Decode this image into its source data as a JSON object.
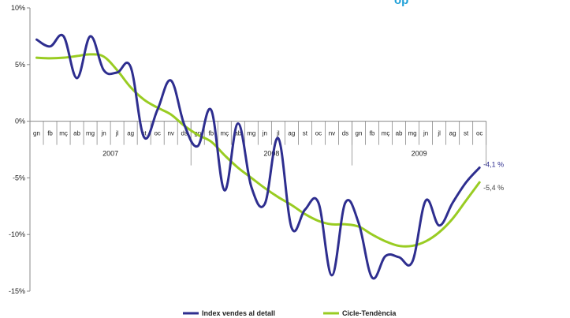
{
  "chart_data": {
    "type": "line",
    "title_fragment": "op",
    "ylim": [
      -15,
      10
    ],
    "y_ticks": [
      {
        "value": 10,
        "label": "10%"
      },
      {
        "value": 5,
        "label": "5%"
      },
      {
        "value": 0,
        "label": "0%"
      },
      {
        "value": -5,
        "label": "-5%"
      },
      {
        "value": -10,
        "label": "-10%"
      },
      {
        "value": -15,
        "label": "-15%"
      }
    ],
    "months": [
      "gn",
      "fb",
      "mç",
      "ab",
      "mg",
      "jn",
      "jl",
      "ag",
      "st",
      "oc",
      "nv",
      "ds",
      "gn",
      "fb",
      "mç",
      "ab",
      "mg",
      "jn",
      "jl",
      "ag",
      "st",
      "oc",
      "nv",
      "ds",
      "gn",
      "fb",
      "mç",
      "ab",
      "mg",
      "jn",
      "jl",
      "ag",
      "st",
      "oc"
    ],
    "years": [
      {
        "label": "2007",
        "start": 0,
        "end": 11
      },
      {
        "label": "2008",
        "start": 12,
        "end": 23
      },
      {
        "label": "2009",
        "start": 24,
        "end": 33
      }
    ],
    "series": [
      {
        "name": "Index vendes al detall",
        "color": "#2e2e8f",
        "values": [
          7.2,
          6.6,
          7.5,
          3.8,
          7.5,
          4.5,
          4.3,
          4.8,
          -1.4,
          1.0,
          3.6,
          -0.3,
          -2.2,
          1.0,
          -6.1,
          -0.2,
          -5.8,
          -7.3,
          -1.5,
          -9.4,
          -7.8,
          -7.2,
          -13.6,
          -7.2,
          -9.0,
          -13.8,
          -11.9,
          -12.0,
          -12.4,
          -7.0,
          -9.2,
          -7.2,
          -5.4,
          -4.1
        ],
        "end_label": "-4,1 %"
      },
      {
        "name": "Cicle-Tendència",
        "color": "#99cc22",
        "values": [
          5.6,
          5.55,
          5.6,
          5.75,
          5.9,
          5.7,
          4.5,
          3.0,
          1.9,
          1.2,
          0.6,
          -0.4,
          -1.2,
          -1.8,
          -3.0,
          -4.1,
          -5.0,
          -5.9,
          -6.7,
          -7.4,
          -8.2,
          -8.8,
          -9.1,
          -9.1,
          -9.3,
          -10.0,
          -10.6,
          -11.0,
          -11.0,
          -10.6,
          -9.8,
          -8.6,
          -7.0,
          -5.4
        ],
        "end_label": "-5,4 %"
      }
    ],
    "grid": false,
    "legend_position": "bottom"
  },
  "colors": {
    "axis": "#888888",
    "title": "#1ea0d8"
  }
}
